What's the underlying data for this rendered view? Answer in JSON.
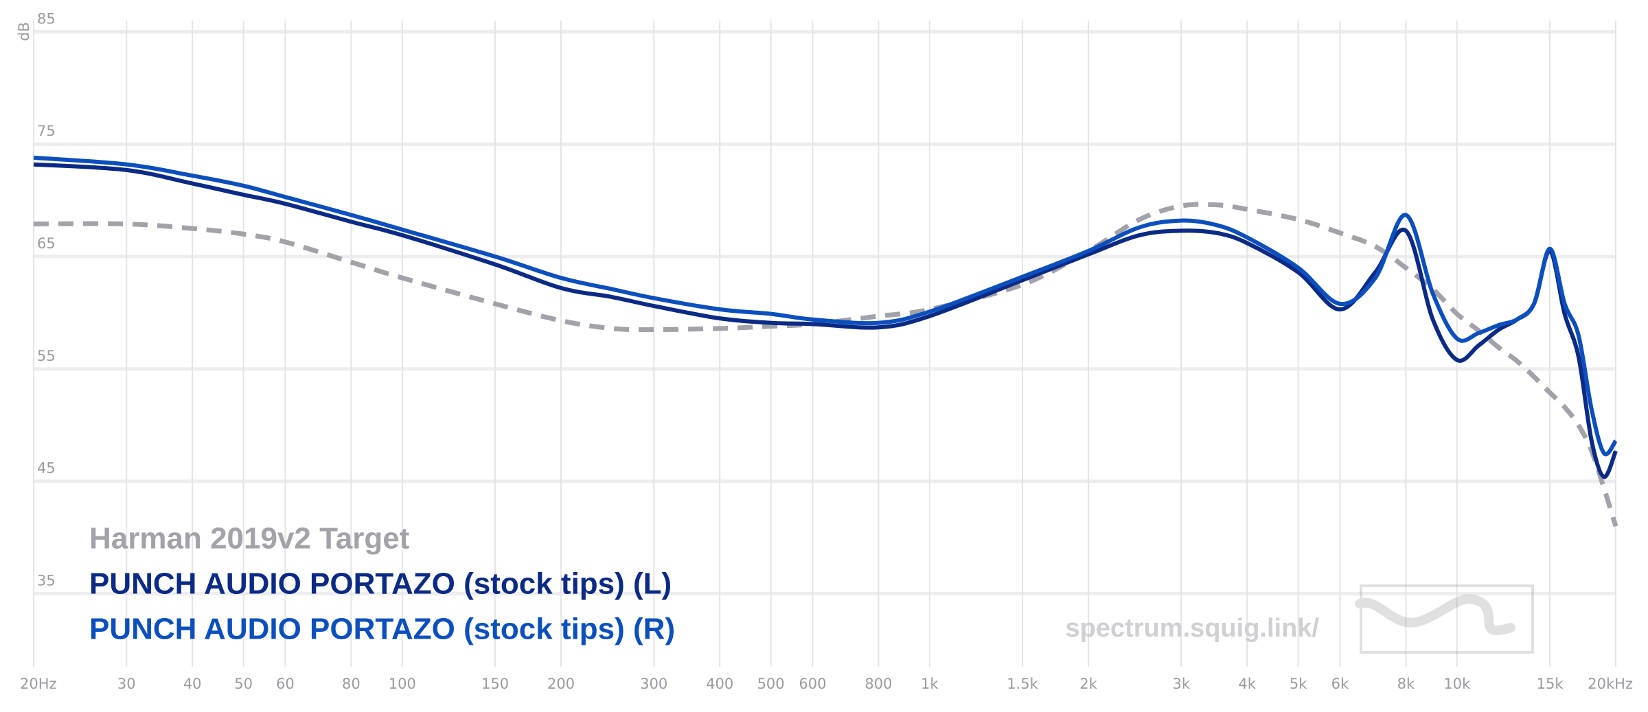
{
  "chart_data": {
    "type": "line",
    "y_label": "dB",
    "watermark": "spectrum.squig.link/",
    "x": [
      20,
      30,
      40,
      50,
      60,
      80,
      100,
      150,
      200,
      250,
      300,
      400,
      500,
      600,
      800,
      1000,
      1500,
      2000,
      2500,
      3000,
      3500,
      4000,
      5000,
      6000,
      7000,
      8000,
      9000,
      10000,
      11000,
      12000,
      13000,
      14000,
      15000,
      16000,
      17000,
      18000,
      19000,
      20000
    ],
    "xlim": [
      20,
      20000
    ],
    "x_log": true,
    "xticks": [
      {
        "value": 20,
        "label": "20Hz"
      },
      30,
      40,
      50,
      60,
      80,
      100,
      150,
      200,
      300,
      400,
      500,
      600,
      800,
      {
        "value": 1000,
        "label": "1k"
      },
      {
        "value": 1500,
        "label": "1.5k"
      },
      {
        "value": 2000,
        "label": "2k"
      },
      {
        "value": 3000,
        "label": "3k"
      },
      {
        "value": 4000,
        "label": "4k"
      },
      {
        "value": 5000,
        "label": "5k"
      },
      {
        "value": 6000,
        "label": "6k"
      },
      {
        "value": 8000,
        "label": "8k"
      },
      {
        "value": 10000,
        "label": "10k"
      },
      {
        "value": 15000,
        "label": "15k"
      },
      {
        "value": 20000,
        "label": "20kHz"
      }
    ],
    "ylim": [
      28.5,
      86
    ],
    "yticks": [
      35,
      45,
      55,
      65,
      75,
      85
    ],
    "grid": true,
    "series": [
      {
        "name": "Harman 2019v2 Target",
        "color": "#a2a2aa",
        "dashed": true,
        "values": [
          67.9,
          67.9,
          67.5,
          67.0,
          66.3,
          64.5,
          63.1,
          60.8,
          59.3,
          58.6,
          58.5,
          58.6,
          58.8,
          59.0,
          59.7,
          60.3,
          62.5,
          65.5,
          68.3,
          69.5,
          69.6,
          69.2,
          68.3,
          67.1,
          65.9,
          64.0,
          62.1,
          59.9,
          58.4,
          56.9,
          55.7,
          54.3,
          52.9,
          51.6,
          50.0,
          47.7,
          44.4,
          41.0
        ]
      },
      {
        "name": "PUNCH AUDIO PORTAZO (stock tips) (L)",
        "color": "#0b2a86",
        "dashed": false,
        "values": [
          73.2,
          72.7,
          71.5,
          70.5,
          69.7,
          68.1,
          66.9,
          64.3,
          62.2,
          61.4,
          60.6,
          59.5,
          59.1,
          59.0,
          58.7,
          59.7,
          62.9,
          65.2,
          66.9,
          67.3,
          67.1,
          66.2,
          63.6,
          60.3,
          63.6,
          67.3,
          59.4,
          55.8,
          57.1,
          58.5,
          59.4,
          60.8,
          65.5,
          59.9,
          56.1,
          48.6,
          45.4,
          47.7
        ]
      },
      {
        "name": "PUNCH AUDIO PORTAZO (stock tips) (R)",
        "color": "#0b4fbf",
        "dashed": false,
        "values": [
          73.8,
          73.2,
          72.2,
          71.3,
          70.3,
          68.7,
          67.4,
          65.0,
          63.1,
          62.1,
          61.3,
          60.3,
          59.9,
          59.4,
          59.1,
          60.1,
          63.2,
          65.5,
          67.6,
          68.2,
          67.8,
          66.7,
          64.0,
          60.8,
          63.1,
          68.7,
          61.7,
          57.7,
          58.2,
          58.9,
          59.4,
          60.8,
          65.7,
          60.8,
          58.0,
          51.4,
          47.5,
          48.6
        ]
      }
    ]
  }
}
